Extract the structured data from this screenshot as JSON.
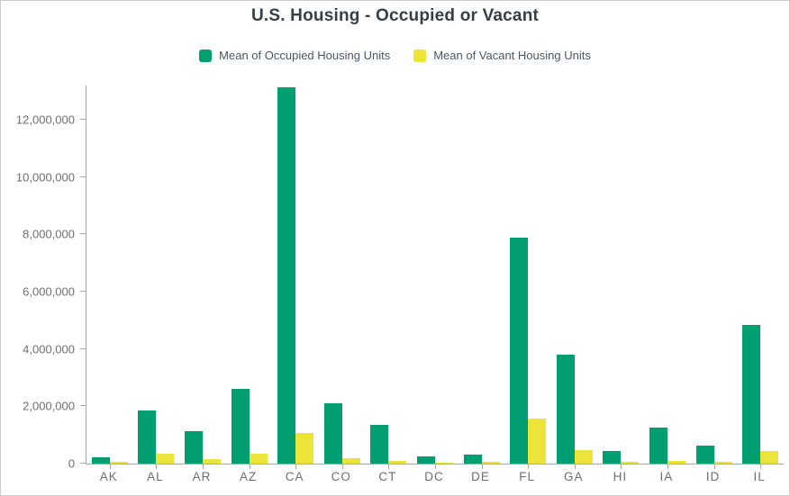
{
  "title": "U.S. Housing - Occupied or Vacant",
  "legend": {
    "items": [
      {
        "label": "Mean of Occupied Housing Units",
        "color": "#009e70"
      },
      {
        "label": "Mean of Vacant Housing Units",
        "color": "#ede43b"
      }
    ]
  },
  "colors": {
    "occupied_green": "#009e70",
    "vacant_yellow": "#ede43b",
    "axis_line": "#a8a8a8",
    "axis_text": "#6e6e6e",
    "legend_text": "#4b5763",
    "title_text": "#383e45"
  },
  "chart_data": {
    "type": "bar",
    "title": "U.S. Housing - Occupied or Vacant",
    "xlabel": "",
    "ylabel": "",
    "grid": false,
    "legend_position": "top",
    "ylim": [
      0,
      13200000
    ],
    "yticks": [
      0,
      2000000,
      4000000,
      6000000,
      8000000,
      10000000,
      12000000
    ],
    "ytick_labels": [
      "0",
      "2,000,000",
      "4,000,000",
      "6,000,000",
      "8,000,000",
      "10,000,000",
      "12,000,000"
    ],
    "categories": [
      "AK",
      "AL",
      "AR",
      "AZ",
      "CA",
      "CO",
      "CT",
      "DC",
      "DE",
      "FL",
      "GA",
      "HI",
      "IA",
      "ID",
      "IL"
    ],
    "series": [
      {
        "name": "Mean of Occupied Housing Units",
        "color": "#009e70",
        "values": [
          230000,
          1860000,
          1130000,
          2600000,
          13150000,
          2110000,
          1340000,
          240000,
          320000,
          7900000,
          3790000,
          440000,
          1260000,
          620000,
          4850000
        ]
      },
      {
        "name": "Mean of Vacant Housing Units",
        "color": "#ede43b",
        "values": [
          50000,
          350000,
          160000,
          360000,
          1070000,
          180000,
          100000,
          30000,
          50000,
          1580000,
          460000,
          60000,
          110000,
          70000,
          450000
        ]
      }
    ]
  }
}
